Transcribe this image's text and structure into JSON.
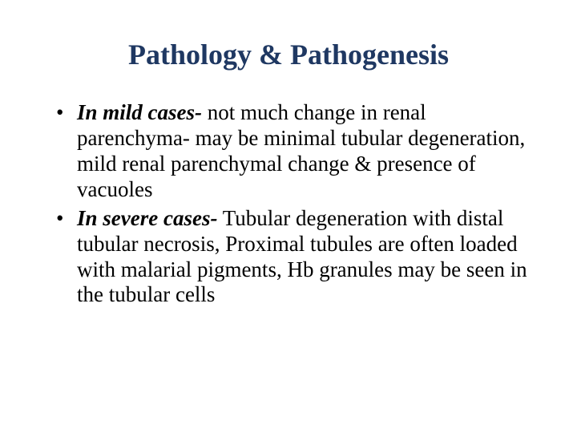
{
  "title": "Pathology & Pathogenesis",
  "title_color": "#1f3862",
  "title_fontsize": 36,
  "body_fontsize": 27,
  "body_color": "#000000",
  "background_color": "#ffffff",
  "bullets": [
    {
      "lead": "In mild cases-",
      "rest": " not much change in renal parenchyma- may be minimal tubular degeneration, mild renal parenchymal change & presence of vacuoles"
    },
    {
      "lead": "In severe cases-",
      "rest": " Tubular degeneration with distal tubular necrosis, Proximal tubules are often loaded with malarial pigments, Hb granules may be seen in the tubular cells"
    }
  ]
}
